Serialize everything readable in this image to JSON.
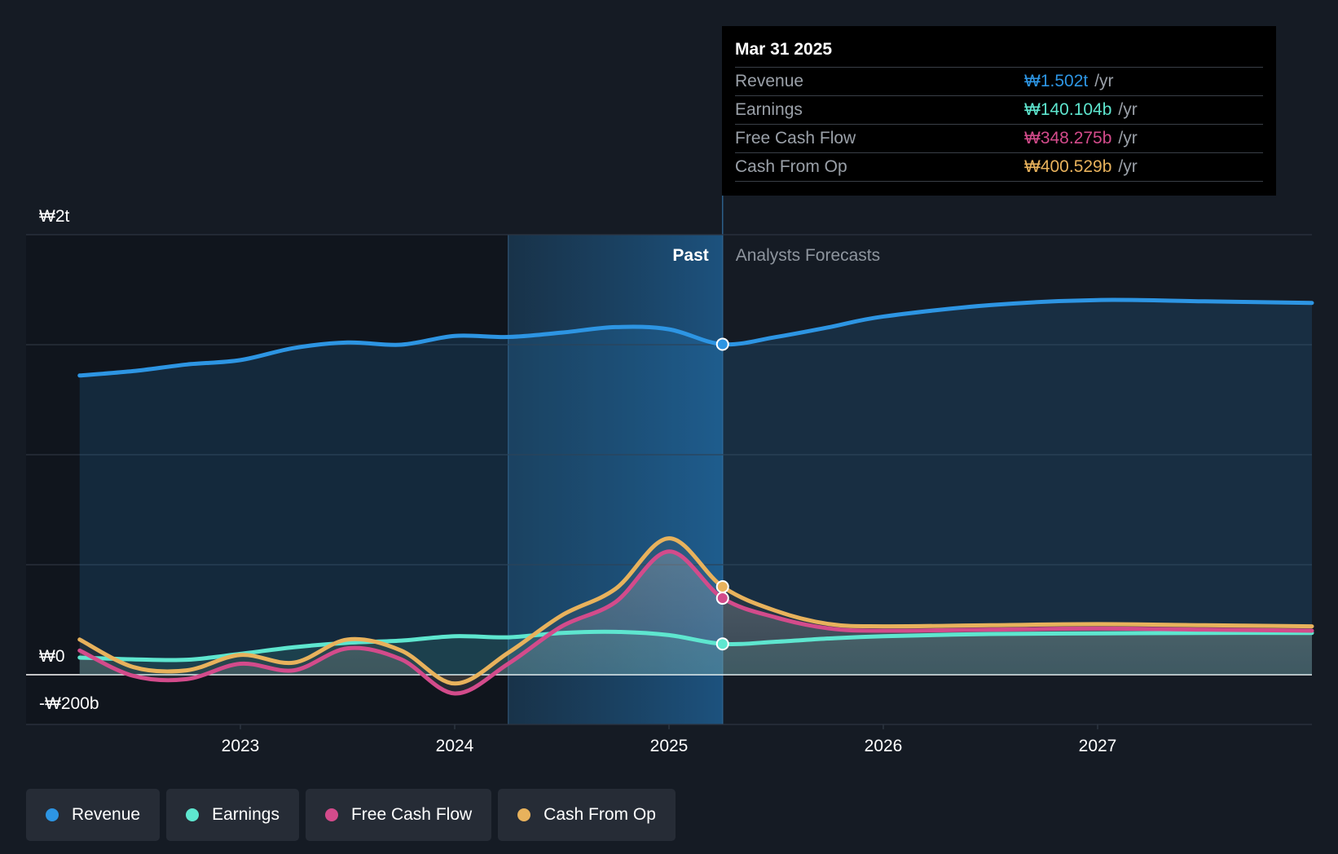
{
  "colors": {
    "revenue": "#2d95e3",
    "earnings": "#5ee6cf",
    "fcf": "#d34b8b",
    "cfo": "#e8b25c",
    "background": "#151b24"
  },
  "tooltip": {
    "date": "Mar 31 2025",
    "rows": [
      {
        "label": "Revenue",
        "value": "₩1.502t",
        "unit": "/yr"
      },
      {
        "label": "Earnings",
        "value": "₩140.104b",
        "unit": "/yr"
      },
      {
        "label": "Free Cash Flow",
        "value": "₩348.275b",
        "unit": "/yr"
      },
      {
        "label": "Cash From Op",
        "value": "₩400.529b",
        "unit": "/yr"
      }
    ]
  },
  "legend": [
    {
      "label": "Revenue",
      "icon": "revenue-dot"
    },
    {
      "label": "Earnings",
      "icon": "earnings-dot"
    },
    {
      "label": "Free Cash Flow",
      "icon": "fcf-dot"
    },
    {
      "label": "Cash From Op",
      "icon": "cfo-dot"
    }
  ],
  "chart_data": {
    "type": "line",
    "y_tick_labels": [
      "₩2t",
      "₩0",
      "-₩200b"
    ],
    "x_tick_labels": [
      "2023",
      "2024",
      "2025",
      "2026",
      "2027"
    ],
    "ylim": [
      -200,
      2000
    ],
    "y_unit": "₩ billions",
    "x_unit": "decimal year",
    "xlim": [
      2022.25,
      2028.0
    ],
    "past_label": "Past",
    "forecast_label": "Analysts Forecasts",
    "divider_x": 2025.25,
    "highlight_start_x": 2024.25,
    "grid": true,
    "legend_position": "bottom",
    "series": [
      {
        "name": "Revenue",
        "color_key": "revenue",
        "points": [
          [
            2022.25,
            1360
          ],
          [
            2022.5,
            1380
          ],
          [
            2022.75,
            1410
          ],
          [
            2023.0,
            1430
          ],
          [
            2023.25,
            1485
          ],
          [
            2023.5,
            1510
          ],
          [
            2023.75,
            1500
          ],
          [
            2024.0,
            1540
          ],
          [
            2024.25,
            1535
          ],
          [
            2024.5,
            1555
          ],
          [
            2024.75,
            1580
          ],
          [
            2025.0,
            1570
          ],
          [
            2025.25,
            1502
          ],
          [
            2025.5,
            1535
          ],
          [
            2025.75,
            1580
          ],
          [
            2026.0,
            1628
          ],
          [
            2026.5,
            1680
          ],
          [
            2027.0,
            1703
          ],
          [
            2027.5,
            1697
          ],
          [
            2028.0,
            1690
          ]
        ]
      },
      {
        "name": "Earnings",
        "color_key": "earnings",
        "points": [
          [
            2022.25,
            78
          ],
          [
            2022.5,
            70
          ],
          [
            2022.75,
            68
          ],
          [
            2023.0,
            95
          ],
          [
            2023.25,
            125
          ],
          [
            2023.5,
            145
          ],
          [
            2023.75,
            155
          ],
          [
            2024.0,
            175
          ],
          [
            2024.25,
            170
          ],
          [
            2024.5,
            190
          ],
          [
            2024.75,
            195
          ],
          [
            2025.0,
            180
          ],
          [
            2025.25,
            140
          ],
          [
            2025.5,
            150
          ],
          [
            2025.75,
            165
          ],
          [
            2026.0,
            175
          ],
          [
            2026.5,
            185
          ],
          [
            2027.0,
            188
          ],
          [
            2027.5,
            190
          ],
          [
            2028.0,
            190
          ]
        ]
      },
      {
        "name": "Free Cash Flow",
        "color_key": "fcf",
        "points": [
          [
            2022.25,
            110
          ],
          [
            2022.5,
            -5
          ],
          [
            2022.75,
            -20
          ],
          [
            2023.0,
            50
          ],
          [
            2023.25,
            20
          ],
          [
            2023.5,
            120
          ],
          [
            2023.75,
            70
          ],
          [
            2024.0,
            -85
          ],
          [
            2024.25,
            50
          ],
          [
            2024.5,
            220
          ],
          [
            2024.75,
            330
          ],
          [
            2025.0,
            560
          ],
          [
            2025.25,
            348
          ],
          [
            2025.5,
            260
          ],
          [
            2025.75,
            210
          ],
          [
            2026.0,
            200
          ],
          [
            2026.5,
            205
          ],
          [
            2027.0,
            210
          ],
          [
            2027.5,
            205
          ],
          [
            2028.0,
            200
          ]
        ]
      },
      {
        "name": "Cash From Op",
        "color_key": "cfo",
        "points": [
          [
            2022.25,
            160
          ],
          [
            2022.5,
            35
          ],
          [
            2022.75,
            20
          ],
          [
            2023.0,
            90
          ],
          [
            2023.25,
            55
          ],
          [
            2023.5,
            160
          ],
          [
            2023.75,
            110
          ],
          [
            2024.0,
            -40
          ],
          [
            2024.25,
            100
          ],
          [
            2024.5,
            270
          ],
          [
            2024.75,
            390
          ],
          [
            2025.0,
            620
          ],
          [
            2025.25,
            400
          ],
          [
            2025.5,
            290
          ],
          [
            2025.75,
            230
          ],
          [
            2026.0,
            220
          ],
          [
            2026.5,
            225
          ],
          [
            2027.0,
            230
          ],
          [
            2027.5,
            225
          ],
          [
            2028.0,
            220
          ]
        ]
      }
    ]
  }
}
